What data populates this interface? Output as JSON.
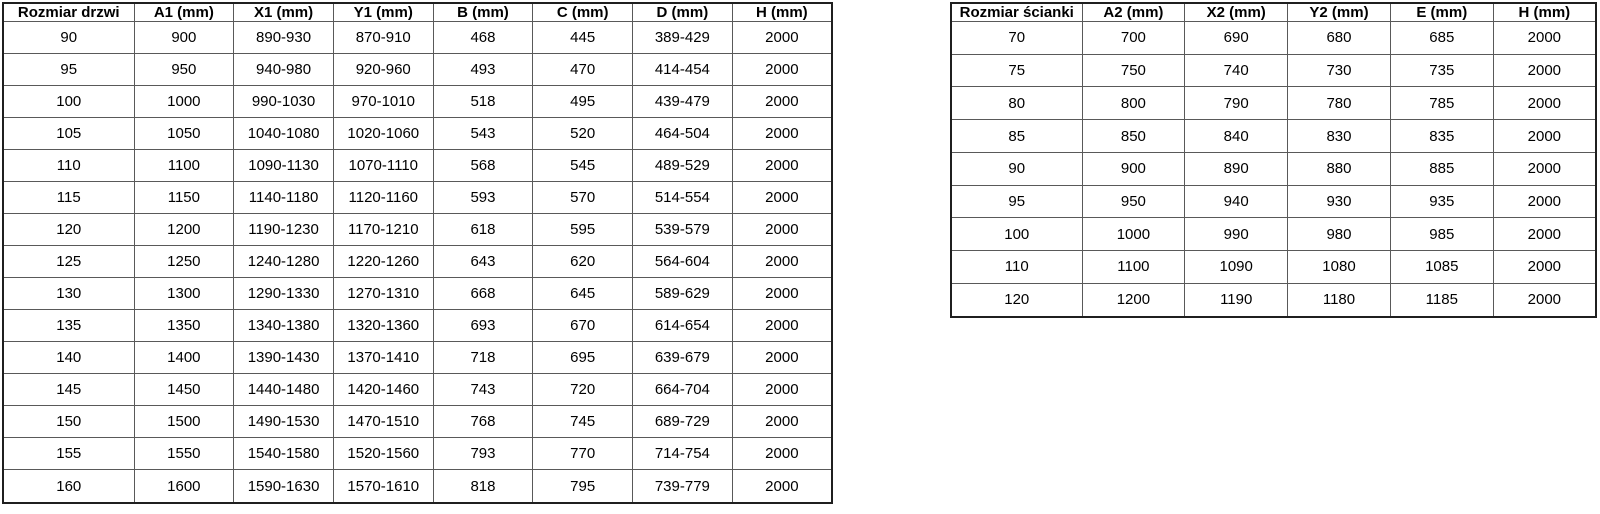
{
  "colors": {
    "background": "#ffffff",
    "text": "#000000",
    "border_outer": "#1f1f1f",
    "border_inner": "#595959"
  },
  "door_table": {
    "headers": [
      "Rozmiar drzwi",
      "A1 (mm)",
      "X1 (mm)",
      "Y1 (mm)",
      "B (mm)",
      "C (mm)",
      "D (mm)",
      "H (mm)"
    ],
    "rows": [
      [
        "90",
        "900",
        "890-930",
        "870-910",
        "468",
        "445",
        "389-429",
        "2000"
      ],
      [
        "95",
        "950",
        "940-980",
        "920-960",
        "493",
        "470",
        "414-454",
        "2000"
      ],
      [
        "100",
        "1000",
        "990-1030",
        "970-1010",
        "518",
        "495",
        "439-479",
        "2000"
      ],
      [
        "105",
        "1050",
        "1040-1080",
        "1020-1060",
        "543",
        "520",
        "464-504",
        "2000"
      ],
      [
        "110",
        "1100",
        "1090-1130",
        "1070-1110",
        "568",
        "545",
        "489-529",
        "2000"
      ],
      [
        "115",
        "1150",
        "1140-1180",
        "1120-1160",
        "593",
        "570",
        "514-554",
        "2000"
      ],
      [
        "120",
        "1200",
        "1190-1230",
        "1170-1210",
        "618",
        "595",
        "539-579",
        "2000"
      ],
      [
        "125",
        "1250",
        "1240-1280",
        "1220-1260",
        "643",
        "620",
        "564-604",
        "2000"
      ],
      [
        "130",
        "1300",
        "1290-1330",
        "1270-1310",
        "668",
        "645",
        "589-629",
        "2000"
      ],
      [
        "135",
        "1350",
        "1340-1380",
        "1320-1360",
        "693",
        "670",
        "614-654",
        "2000"
      ],
      [
        "140",
        "1400",
        "1390-1430",
        "1370-1410",
        "718",
        "695",
        "639-679",
        "2000"
      ],
      [
        "145",
        "1450",
        "1440-1480",
        "1420-1460",
        "743",
        "720",
        "664-704",
        "2000"
      ],
      [
        "150",
        "1500",
        "1490-1530",
        "1470-1510",
        "768",
        "745",
        "689-729",
        "2000"
      ],
      [
        "155",
        "1550",
        "1540-1580",
        "1520-1560",
        "793",
        "770",
        "714-754",
        "2000"
      ],
      [
        "160",
        "1600",
        "1590-1630",
        "1570-1610",
        "818",
        "795",
        "739-779",
        "2000"
      ]
    ]
  },
  "wall_table": {
    "headers": [
      "Rozmiar ścianki",
      "A2 (mm)",
      "X2 (mm)",
      "Y2 (mm)",
      "E (mm)",
      "H (mm)"
    ],
    "rows": [
      [
        "70",
        "700",
        "690",
        "680",
        "685",
        "2000"
      ],
      [
        "75",
        "750",
        "740",
        "730",
        "735",
        "2000"
      ],
      [
        "80",
        "800",
        "790",
        "780",
        "785",
        "2000"
      ],
      [
        "85",
        "850",
        "840",
        "830",
        "835",
        "2000"
      ],
      [
        "90",
        "900",
        "890",
        "880",
        "885",
        "2000"
      ],
      [
        "95",
        "950",
        "940",
        "930",
        "935",
        "2000"
      ],
      [
        "100",
        "1000",
        "990",
        "980",
        "985",
        "2000"
      ],
      [
        "110",
        "1100",
        "1090",
        "1080",
        "1085",
        "2000"
      ],
      [
        "120",
        "1200",
        "1190",
        "1180",
        "1185",
        "2000"
      ]
    ]
  }
}
